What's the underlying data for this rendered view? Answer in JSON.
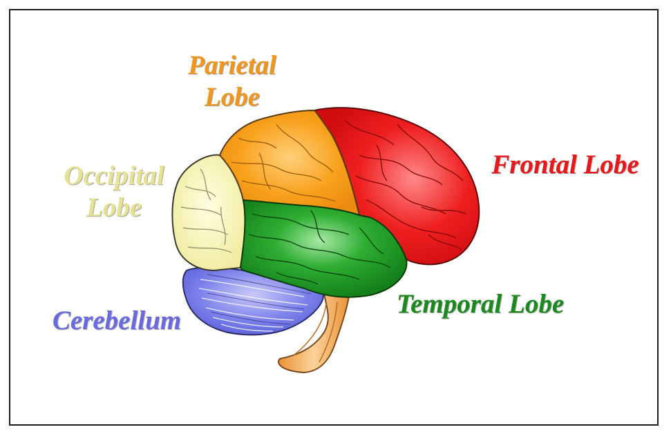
{
  "labels": {
    "parietal": {
      "line1": "Parietal",
      "line2": "Lobe",
      "color": "#f2951b"
    },
    "occipital": {
      "line1": "Occipital",
      "line2": "Lobe",
      "color": "#e6e294"
    },
    "frontal": {
      "text": "Frontal Lobe",
      "color": "#e8171c"
    },
    "temporal": {
      "text": "Temporal Lobe",
      "color": "#1b8a1e"
    },
    "cerebellum": {
      "text": "Cerebellum",
      "color": "#6a6ae0"
    }
  },
  "colors": {
    "frontal_fill": "#ee2020",
    "parietal_fill": "#f8a11c",
    "occipital_fill": "#f8f4ad",
    "temporal_fill": "#1f9a26",
    "cerebellum_fill": "#6f74e6",
    "brainstem_fill": "#f5b56a"
  }
}
